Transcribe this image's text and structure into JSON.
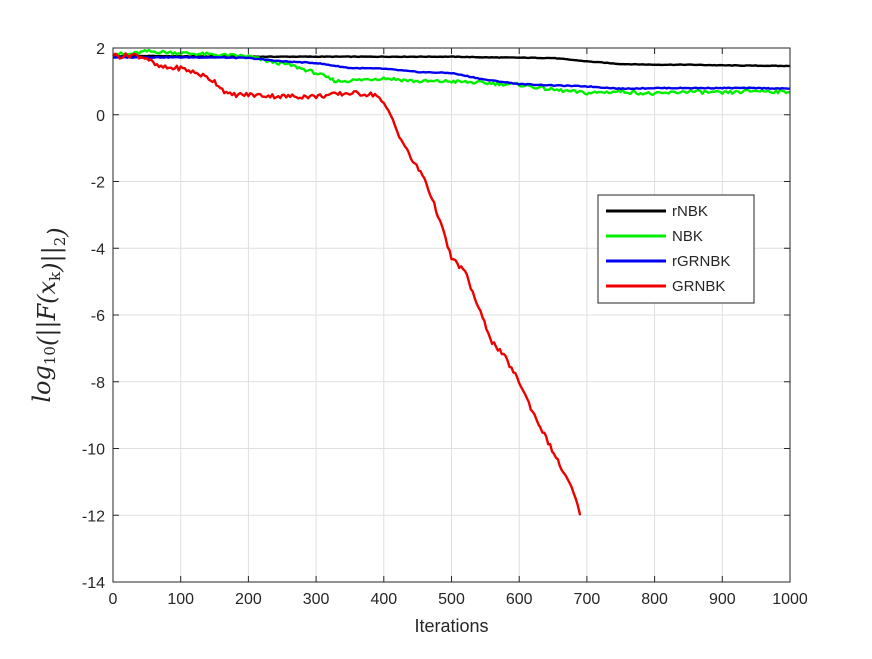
{
  "chart_data": {
    "type": "line",
    "title": "",
    "xlabel": "Iterations",
    "ylabel": "log10(||F(x_k)||_2)",
    "xlim": [
      0,
      1000
    ],
    "ylim": [
      -14,
      2
    ],
    "xticks": [
      0,
      100,
      200,
      300,
      400,
      500,
      600,
      700,
      800,
      900,
      1000
    ],
    "yticks": [
      -14,
      -12,
      -10,
      -8,
      -6,
      -4,
      -2,
      0,
      2
    ],
    "grid": true,
    "legend_position": "center-right",
    "series": [
      {
        "name": "rNBK",
        "color": "#000000",
        "x": [
          0,
          50,
          100,
          200,
          300,
          400,
          500,
          550,
          600,
          650,
          700,
          750,
          800,
          850,
          900,
          950,
          1000
        ],
        "y": [
          1.75,
          1.76,
          1.75,
          1.74,
          1.74,
          1.74,
          1.74,
          1.72,
          1.71,
          1.7,
          1.6,
          1.52,
          1.5,
          1.5,
          1.48,
          1.47,
          1.46
        ]
      },
      {
        "name": "NBK",
        "color": "#00ee00",
        "x": [
          0,
          20,
          50,
          100,
          150,
          200,
          230,
          260,
          300,
          330,
          370,
          400,
          450,
          500,
          550,
          600,
          650,
          700,
          750,
          800,
          850,
          900,
          950,
          1000
        ],
        "y": [
          1.85,
          1.8,
          1.9,
          1.85,
          1.8,
          1.75,
          1.6,
          1.5,
          1.25,
          1.0,
          1.05,
          1.1,
          1.0,
          1.0,
          0.95,
          0.9,
          0.75,
          0.65,
          0.7,
          0.62,
          0.7,
          0.65,
          0.72,
          0.68
        ]
      },
      {
        "name": "rGRNBK",
        "color": "#0000ee",
        "x": [
          0,
          100,
          150,
          200,
          250,
          300,
          350,
          400,
          450,
          500,
          550,
          600,
          650,
          700,
          750,
          800,
          850,
          900,
          950,
          1000
        ],
        "y": [
          1.72,
          1.72,
          1.72,
          1.7,
          1.6,
          1.55,
          1.4,
          1.38,
          1.28,
          1.25,
          1.05,
          0.92,
          0.88,
          0.85,
          0.78,
          0.8,
          0.8,
          0.8,
          0.8,
          0.78
        ]
      },
      {
        "name": "GRNBK",
        "color": "#ee0000",
        "x": [
          0,
          10,
          30,
          50,
          65,
          80,
          100,
          130,
          150,
          170,
          200,
          250,
          300,
          350,
          390,
          400,
          410,
          420,
          440,
          460,
          480,
          500,
          520,
          540,
          560,
          580,
          600,
          620,
          640,
          660,
          680,
          690
        ],
        "y": [
          1.8,
          1.75,
          1.8,
          1.7,
          1.45,
          1.4,
          1.4,
          1.2,
          1.0,
          0.6,
          0.6,
          0.55,
          0.55,
          0.65,
          0.6,
          0.3,
          0.0,
          -0.5,
          -1.3,
          -1.9,
          -3.0,
          -4.3,
          -4.7,
          -5.8,
          -6.8,
          -7.3,
          -8.0,
          -8.9,
          -9.7,
          -10.5,
          -11.3,
          -12.0
        ]
      }
    ]
  }
}
